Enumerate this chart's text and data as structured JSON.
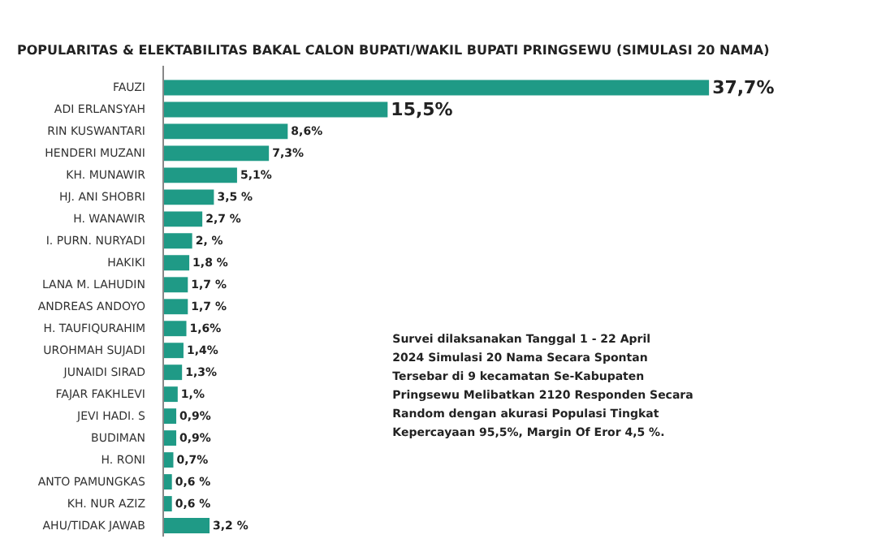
{
  "chart_data": {
    "type": "bar",
    "orientation": "horizontal",
    "tick_labels": "y",
    "title": "POPULARITAS & ELEKTABILITAS BAKAL CALON BUPATI/WAKIL BUPATI PRINGSEWU (SIMULASI 20 NAMA)",
    "categories": [
      "FAUZI",
      "ADI ERLANSYAH",
      "RIN KUSWANTARI",
      "HENDERI MUZANI",
      "KH. MUNAWIR",
      "HJ. ANI SHOBRI",
      "H. WANAWIR",
      "I. PURN. NURYADI",
      "HAKIKI",
      "LANA M. LAHUDIN",
      "ANDREAS ANDOYO",
      "H. TAUFIQURAHIM",
      "UROHMAH SUJADI",
      "JUNAIDI SIRAD",
      "FAJAR FAKHLEVI",
      "JEVI HADI. S",
      "BUDIMAN",
      "H. RONI",
      "ANTO PAMUNGKAS",
      "KH. NUR AZIZ",
      "AHU/TIDAK JAWAB"
    ],
    "values": [
      37.7,
      15.5,
      8.6,
      7.3,
      5.1,
      3.5,
      2.7,
      2,
      1.8,
      1.7,
      1.7,
      1.6,
      1.4,
      1.3,
      1,
      0.9,
      0.9,
      0.7,
      0.6,
      0.6,
      3.2
    ],
    "value_labels": [
      "37,7%",
      "15,5%",
      "8,6%",
      "7,3%",
      "5,1%",
      "3,5 %",
      "2,7 %",
      "2, %",
      "1,8 %",
      "1,7 %",
      "1,7 %",
      "1,6%",
      "1,4%",
      "1,3%",
      "1,%",
      "0,9%",
      "0,9%",
      "0,7%",
      "0,6 %",
      "0,6 %",
      "3,2 %"
    ],
    "color": "#1f9a86",
    "annotations": [
      "Survei dilaksanakan Tanggal 1 - 22 April 2024 Simulasi 20 Nama Secara Spontan Tersebar di 9 kecamatan Se-Kabupaten Pringsewu Melibatkan 2120 Responden Secara Random dengan akurasi Populasi Tingkat Kepercayaan 95,5%, Margin Of Eror 4,5 %."
    ]
  }
}
